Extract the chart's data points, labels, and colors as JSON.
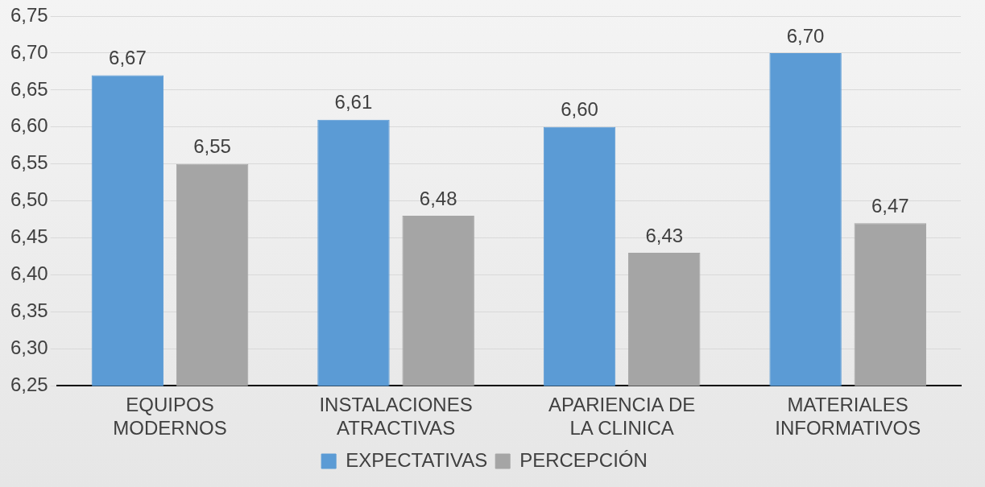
{
  "chart_data": {
    "type": "bar",
    "categories": [
      "EQUIPOS MODERNOS",
      "INSTALACIONES ATRACTIVAS",
      "APARIENCIA DE LA CLINICA",
      "MATERIALES INFORMATIVOS"
    ],
    "series": [
      {
        "name": "EXPECTATIVAS",
        "color": "#5b9bd5",
        "values": [
          6.67,
          6.61,
          6.6,
          6.7
        ],
        "value_labels": [
          "6,67",
          "6,61",
          "6,60",
          "6,70"
        ]
      },
      {
        "name": "PERCEPCIÓN",
        "color": "#a5a5a5",
        "values": [
          6.55,
          6.48,
          6.43,
          6.47
        ],
        "value_labels": [
          "6,55",
          "6,48",
          "6,43",
          "6,47"
        ]
      }
    ],
    "ylim": [
      6.25,
      6.75
    ],
    "yticks": [
      {
        "value": 6.25,
        "label": "6,25"
      },
      {
        "value": 6.3,
        "label": "6,30"
      },
      {
        "value": 6.35,
        "label": "6,35"
      },
      {
        "value": 6.4,
        "label": "6,40"
      },
      {
        "value": 6.45,
        "label": "6,45"
      },
      {
        "value": 6.5,
        "label": "6,50"
      },
      {
        "value": 6.55,
        "label": "6,55"
      },
      {
        "value": 6.6,
        "label": "6,60"
      },
      {
        "value": 6.65,
        "label": "6,65"
      },
      {
        "value": 6.7,
        "label": "6,70"
      },
      {
        "value": 6.75,
        "label": "6,75"
      }
    ],
    "grid": "y",
    "legend": "bottom"
  }
}
